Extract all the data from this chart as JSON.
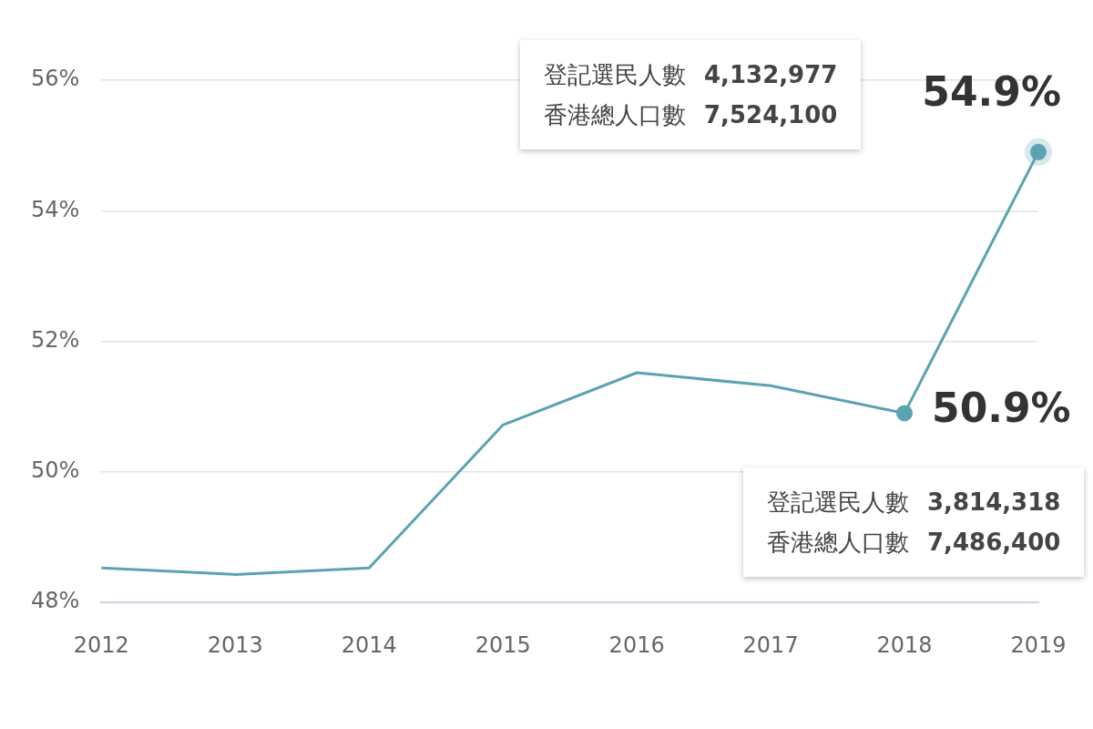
{
  "chart_data": {
    "type": "line",
    "categories": [
      "2012",
      "2013",
      "2014",
      "2015",
      "2016",
      "2017",
      "2018",
      "2019"
    ],
    "series": [
      {
        "color": "#5ba3b0",
        "values": [
          48.53,
          48.43,
          48.53,
          50.72,
          51.52,
          51.32,
          50.9,
          54.9
        ],
        "value_labels": [
          null,
          null,
          null,
          null,
          null,
          null,
          "50.9%",
          "54.9%"
        ]
      }
    ],
    "ylim": [
      48,
      56
    ],
    "yticks": [
      {
        "value": 48,
        "label": "48%"
      },
      {
        "value": 50,
        "label": "50%"
      },
      {
        "value": 52,
        "label": "52%"
      },
      {
        "value": 54,
        "label": "54%"
      },
      {
        "value": 56,
        "label": "56%"
      }
    ],
    "grid": "y",
    "legend": false,
    "line_style": "solid",
    "annotations": [
      "登記選民人數 4,132,977",
      "香港總人口數 7,524,100",
      "登記選民人數 3,814,318",
      "香港總人口數 7,486,400"
    ]
  }
}
